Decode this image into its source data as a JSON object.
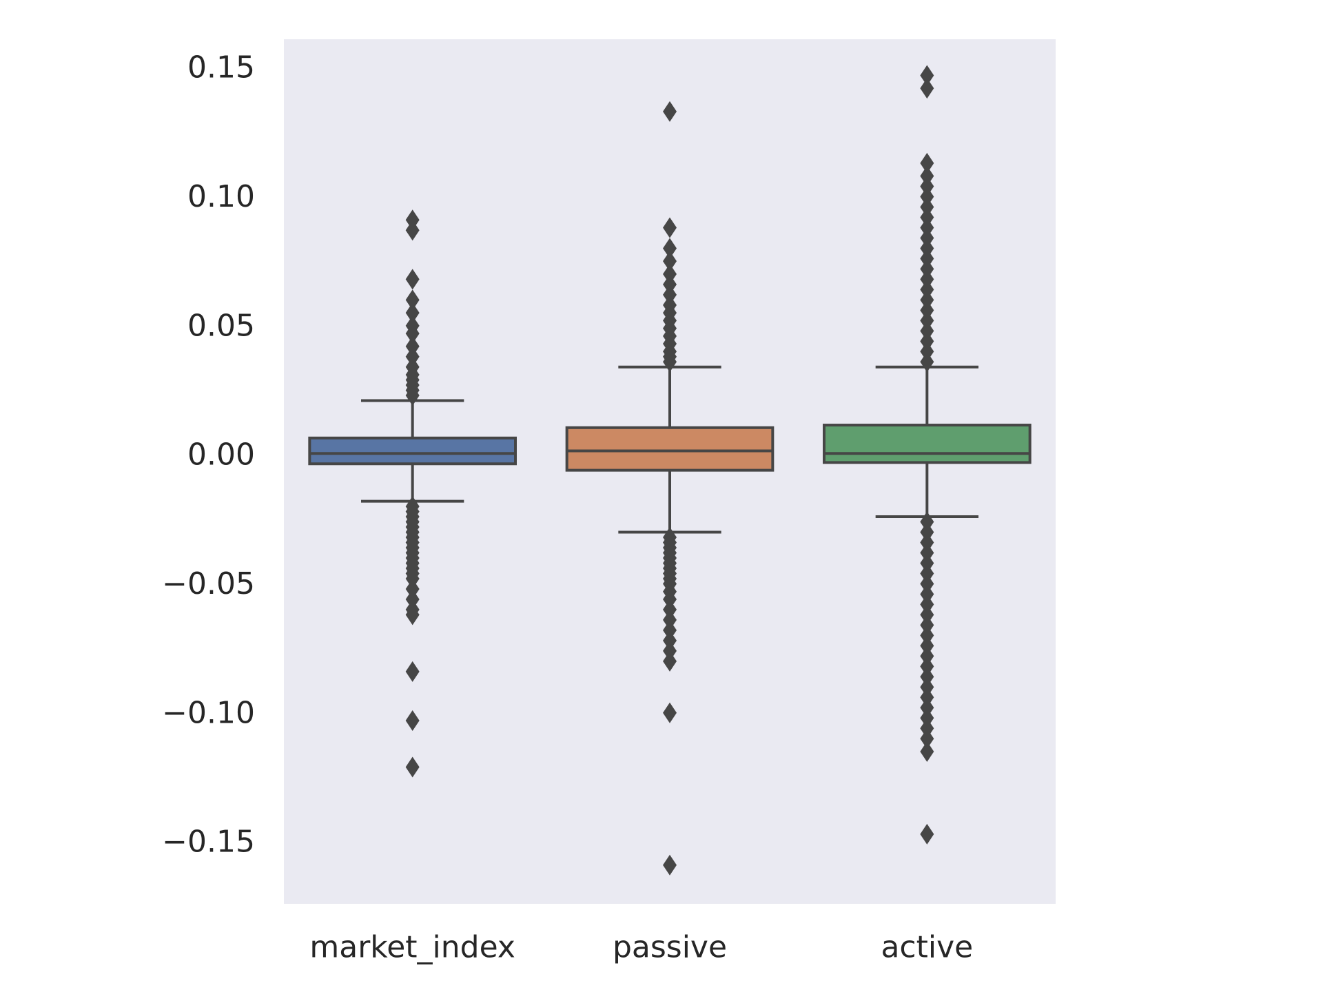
{
  "chart_data": {
    "type": "box",
    "categories": [
      "market_index",
      "passive",
      "active"
    ],
    "ylim": [
      -0.174,
      0.161
    ],
    "yticks": [
      0.15,
      0.1,
      0.05,
      0.0,
      -0.05,
      -0.1,
      -0.15
    ],
    "ytick_labels": [
      "0.15",
      "0.10",
      "0.05",
      "0.00",
      "−0.05",
      "−0.10",
      "−0.15"
    ],
    "grid": false,
    "colors": {
      "background": "#eaeaf2",
      "edge": "#464646",
      "boxes": [
        "#5875a4",
        "#cc8963",
        "#5f9e6e"
      ]
    },
    "boxes": [
      {
        "name": "market_index",
        "q1": -0.0035,
        "median": 0.0005,
        "q3": 0.0065,
        "whisker_low": -0.018,
        "whisker_high": 0.021,
        "outliers_high": [
          0.091,
          0.087,
          0.068,
          0.06,
          0.055,
          0.05,
          0.047,
          0.042,
          0.038,
          0.034,
          0.031,
          0.029,
          0.027,
          0.025,
          0.023
        ],
        "outliers_low": [
          -0.02,
          -0.022,
          -0.024,
          -0.026,
          -0.028,
          -0.03,
          -0.032,
          -0.034,
          -0.036,
          -0.038,
          -0.04,
          -0.042,
          -0.044,
          -0.046,
          -0.048,
          -0.052,
          -0.056,
          -0.06,
          -0.062,
          -0.084,
          -0.103,
          -0.121
        ]
      },
      {
        "name": "passive",
        "q1": -0.006,
        "median": 0.0015,
        "q3": 0.0105,
        "whisker_low": -0.03,
        "whisker_high": 0.034,
        "outliers_high": [
          0.133,
          0.088,
          0.08,
          0.075,
          0.07,
          0.066,
          0.062,
          0.058,
          0.055,
          0.052,
          0.049,
          0.046,
          0.043,
          0.04,
          0.038,
          0.036
        ],
        "outliers_low": [
          -0.032,
          -0.034,
          -0.036,
          -0.038,
          -0.04,
          -0.042,
          -0.044,
          -0.046,
          -0.048,
          -0.05,
          -0.053,
          -0.056,
          -0.06,
          -0.064,
          -0.068,
          -0.072,
          -0.076,
          -0.08,
          -0.1,
          -0.159
        ]
      },
      {
        "name": "active",
        "q1": -0.003,
        "median": 0.0005,
        "q3": 0.0115,
        "whisker_low": -0.024,
        "whisker_high": 0.034,
        "outliers_high": [
          0.147,
          0.142,
          0.113,
          0.108,
          0.104,
          0.1,
          0.096,
          0.092,
          0.088,
          0.084,
          0.08,
          0.076,
          0.072,
          0.068,
          0.064,
          0.06,
          0.056,
          0.052,
          0.048,
          0.044,
          0.04,
          0.036
        ],
        "outliers_low": [
          -0.026,
          -0.03,
          -0.034,
          -0.038,
          -0.042,
          -0.046,
          -0.05,
          -0.054,
          -0.058,
          -0.062,
          -0.066,
          -0.07,
          -0.074,
          -0.078,
          -0.082,
          -0.086,
          -0.09,
          -0.094,
          -0.098,
          -0.102,
          -0.106,
          -0.11,
          -0.115,
          -0.147
        ]
      }
    ]
  }
}
